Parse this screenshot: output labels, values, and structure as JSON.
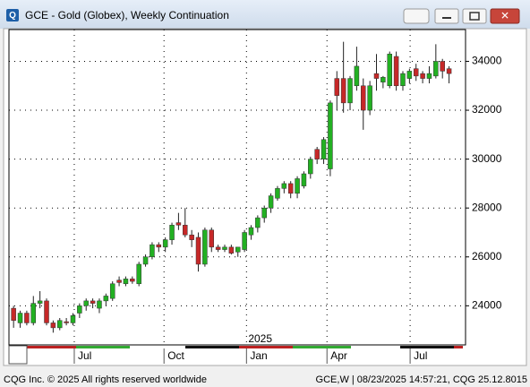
{
  "chart_data": {
    "type": "candlestick",
    "title": "GCE - Gold (Globex), Weekly Continuation",
    "ylim": [
      22400,
      35300
    ],
    "yticks": [
      24000,
      26000,
      28000,
      30000,
      32000,
      34000
    ],
    "xlim": [
      -0.7,
      68.5
    ],
    "xticks": [
      {
        "value": 9.2,
        "label": "Jul"
      },
      {
        "value": 22.8,
        "label": "Oct"
      },
      {
        "value": 35.3,
        "label": "Jan"
      },
      {
        "value": 47.5,
        "label": "Apr"
      },
      {
        "value": 60.1,
        "label": "Jul"
      }
    ],
    "year_ticks": [
      {
        "value": 35.3,
        "label": "2025"
      }
    ],
    "grid": true,
    "up_color": "#22b022",
    "down_color": "#c62828",
    "open": [
      23900,
      23300,
      23700,
      23300,
      24100,
      24200,
      23300,
      23100,
      23350,
      23300,
      23700,
      24000,
      24200,
      23900,
      24200,
      24300,
      25050,
      24900,
      25100,
      24900,
      25700,
      26000,
      26500,
      26400,
      26700,
      27400,
      27300,
      26900,
      26800,
      25700,
      27100,
      26400,
      26300,
      26400,
      26200,
      26300,
      26900,
      27200,
      27600,
      28000,
      28400,
      28800,
      29000,
      28600,
      28900,
      29400,
      30400,
      30000,
      29600,
      33300,
      33300,
      32300,
      33000,
      33000,
      32000,
      33500,
      33150,
      33000,
      34200,
      33000,
      33300,
      33700,
      33500,
      33300,
      33400,
      34000,
      33700
    ],
    "high": [
      24000,
      23800,
      23800,
      24400,
      24600,
      24300,
      23400,
      23500,
      23500,
      23700,
      24100,
      24300,
      24300,
      24300,
      24500,
      25000,
      25200,
      25200,
      25200,
      25800,
      26100,
      26600,
      26600,
      26800,
      27400,
      27800,
      28000,
      27100,
      27000,
      27200,
      27200,
      26500,
      26500,
      26500,
      26400,
      27100,
      27300,
      27700,
      28100,
      28600,
      28900,
      29100,
      29100,
      29300,
      29500,
      30100,
      30500,
      30900,
      32400,
      33600,
      34800,
      33400,
      34600,
      33300,
      33200,
      34300,
      33400,
      34400,
      34400,
      33600,
      33700,
      33900,
      33600,
      33800,
      34700,
      34100,
      33800
    ],
    "low": [
      23100,
      23100,
      23200,
      23200,
      23900,
      23200,
      22900,
      23000,
      23200,
      23200,
      23500,
      23800,
      23900,
      23700,
      24000,
      24200,
      24800,
      24800,
      24900,
      24800,
      25600,
      25900,
      26200,
      26200,
      26500,
      27100,
      26800,
      26400,
      25400,
      25600,
      26200,
      26200,
      26200,
      26100,
      26000,
      26200,
      26700,
      27000,
      27400,
      27800,
      28300,
      28600,
      28400,
      28400,
      28800,
      29200,
      29800,
      29800,
      29300,
      32000,
      31900,
      32000,
      32800,
      31200,
      31800,
      32800,
      32900,
      32900,
      32800,
      32800,
      33100,
      33200,
      33100,
      33100,
      33300,
      33300,
      33100
    ],
    "close": [
      23400,
      23700,
      23300,
      24100,
      24200,
      23300,
      23100,
      23400,
      23300,
      23600,
      24000,
      24200,
      24100,
      24200,
      24400,
      24900,
      24950,
      25100,
      25000,
      25700,
      26000,
      26500,
      26400,
      26700,
      27300,
      27300,
      26900,
      26700,
      25700,
      27100,
      26400,
      26300,
      26400,
      26150,
      26400,
      27000,
      27200,
      27600,
      28000,
      28500,
      28800,
      29000,
      28600,
      29200,
      29400,
      30000,
      30000,
      30800,
      32300,
      32600,
      32300,
      33300,
      33800,
      32000,
      33000,
      33300,
      33350,
      34300,
      33000,
      33500,
      33600,
      33400,
      33300,
      33500,
      34000,
      33600,
      33500
    ]
  },
  "footer": {
    "left": "CQG Inc. © 2025 All rights reserved worldwide",
    "right": "GCE,W | 08/23/2025 14:57:21, CQG 25.12.8015"
  }
}
